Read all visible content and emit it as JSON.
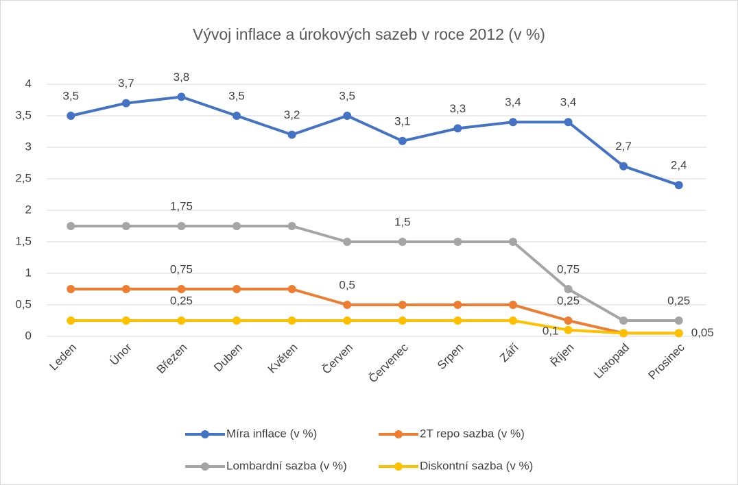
{
  "chart_data": {
    "type": "line",
    "title": "Vývoj inflace a úrokových sazeb v roce 2012 (v %)",
    "categories": [
      "Leden",
      "Únor",
      "Březen",
      "Duben",
      "Květen",
      "Červen",
      "Červenec",
      "Srpen",
      "Září",
      "Říjen",
      "Listopad",
      "Prosinec"
    ],
    "series": [
      {
        "name": "Míra inflace (v %)",
        "color": "#4472c4",
        "values": [
          3.5,
          3.7,
          3.8,
          3.5,
          3.2,
          3.5,
          3.1,
          3.3,
          3.4,
          3.4,
          2.7,
          2.4
        ],
        "value_labels": [
          "3,5",
          "3,7",
          "3,8",
          "3,5",
          "3,2",
          "3,5",
          "3,1",
          "3,3",
          "3,4",
          "3,4",
          "2,7",
          "2,4"
        ]
      },
      {
        "name": "2T repo sazba (v %)",
        "color": "#ed7d31",
        "values": [
          0.75,
          0.75,
          0.75,
          0.75,
          0.75,
          0.5,
          0.5,
          0.5,
          0.5,
          0.25,
          0.05,
          0.05
        ],
        "value_labels": [
          null,
          null,
          "0,75",
          null,
          null,
          "0,5",
          null,
          null,
          null,
          "0,25",
          null,
          null
        ]
      },
      {
        "name": "Lombardní sazba (v %)",
        "color": "#a5a5a5",
        "values": [
          1.75,
          1.75,
          1.75,
          1.75,
          1.75,
          1.5,
          1.5,
          1.5,
          1.5,
          0.75,
          0.25,
          0.25
        ],
        "value_labels": [
          null,
          null,
          "1,75",
          null,
          null,
          null,
          "1,5",
          null,
          null,
          "0,75",
          null,
          "0,25"
        ]
      },
      {
        "name": "Diskontní sazba (v %)",
        "color": "#ffc000",
        "values": [
          0.25,
          0.25,
          0.25,
          0.25,
          0.25,
          0.25,
          0.25,
          0.25,
          0.25,
          0.1,
          0.05,
          0.05
        ],
        "value_labels": [
          null,
          null,
          "0,25",
          null,
          null,
          null,
          null,
          null,
          null,
          "0,1",
          null,
          "0,05"
        ]
      }
    ],
    "ylim": [
      0,
      4
    ],
    "yticks": [
      0,
      {
        "value": 0.5,
        "label": "0,5"
      },
      1,
      {
        "value": 1.5,
        "label": "1,5"
      },
      2,
      {
        "value": 2.5,
        "label": "2,5"
      },
      3,
      {
        "value": 3.5,
        "label": "3,5"
      },
      4
    ],
    "grid": true,
    "legend": "bottom"
  }
}
